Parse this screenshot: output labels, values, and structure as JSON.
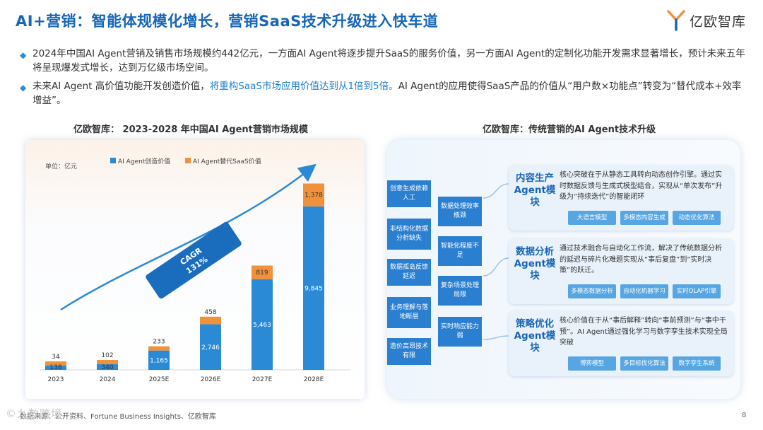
{
  "header": {
    "title": "AI+营销：智能体规模化增长，营销SaaS技术升级进入快车道",
    "logo_text": "亿欧智库"
  },
  "bullets": [
    {
      "text": "2024年中国AI Agent营销及销售市场规模约442亿元，一方面AI Agent将逐步提升SaaS的服务价值，另一方面AI Agent的定制化功能开发需求显著增长，预计未来五年将呈现爆发式增长，达到万亿级市场空间。"
    },
    {
      "pre": "未来AI Agent 高价值功能开发创造价值，",
      "highlight": "将重构SaaS市场应用价值达到从1倍到5倍。",
      "post": "AI Agent的应用使得SaaS产品的价值从“用户数×功能点”转变为“替代成本+效率增益”。"
    }
  ],
  "left_subtitle": "亿欧智库：  2023-2028 年中国AI Agent营销市场规模",
  "right_subtitle": "亿欧智库：传统营销的AI Agent技术升级",
  "chart_data": {
    "type": "bar",
    "stacked": true,
    "unit_label": "单位：亿元",
    "categories": [
      "2023",
      "2024",
      "2025E",
      "2026E",
      "2027E",
      "2028E"
    ],
    "series": [
      {
        "name": "AI Agent创造价值",
        "color": "#2a8ad6",
        "values": [
          138,
          340,
          1165,
          2746,
          5463,
          9845
        ]
      },
      {
        "name": "AI Agent替代SaaS价值",
        "color": "#f0923b",
        "values": [
          34,
          102,
          233,
          458,
          819,
          1378
        ]
      }
    ],
    "cagr_label": "CAGR",
    "cagr_value": "131%",
    "legend_position": "top",
    "grid": false,
    "ylim": [
      0,
      11500
    ]
  },
  "pain_points": {
    "col1": [
      "创意生成依赖人工",
      "非结构化数据分析缺失",
      "数据孤岛反馈延迟",
      "业务理解与落地断层",
      "造价高昂技术有限"
    ],
    "col2": [
      "数据处理效率瓶颈",
      "智能化程度不足",
      "复杂场景处理局限",
      "实时响应能力弱"
    ]
  },
  "modules": [
    {
      "title": "内容生产Agent模块",
      "desc": "核心突破在于从静态工具转向动态创作引擎。通过实时数据反馈与生成式模型结合，实现从“单次发布”升级为“持续迭代”的智能闭环",
      "tags": [
        "大语言模型",
        "多模态内容生成",
        "动态优化算法"
      ]
    },
    {
      "title": "数据分析Agent模块",
      "desc": "通过技术融合与自动化工作流，解决了传统数据分析的延迟与碎片化难题实现从“事后复盘”到“实时决策”的跃迁。",
      "tags": [
        "多模态数据分析",
        "自动化机器学习",
        "实时OLAP引擎"
      ]
    },
    {
      "title": "策略优化Agent模块",
      "desc": "核心价值在于从“事后解释”转向“事前预测”与“事中干预”。AI Agent通过强化学习与数字孪生技术实现全局突破",
      "tags": [
        "博弈模型",
        "多目标优化算法",
        "数字孪生系统"
      ]
    }
  ],
  "footer": {
    "source": "数据来源：公开资料、Fortune Business Insights、亿欧智库",
    "page": "8",
    "watermark": "©九数跨境"
  },
  "colors": {
    "title_blue": "#1766b8",
    "bar_blue": "#2a8ad6",
    "bar_orange": "#f0923b",
    "box_blue": "#2a7fd1",
    "tag_blue": "#57a6e2"
  }
}
